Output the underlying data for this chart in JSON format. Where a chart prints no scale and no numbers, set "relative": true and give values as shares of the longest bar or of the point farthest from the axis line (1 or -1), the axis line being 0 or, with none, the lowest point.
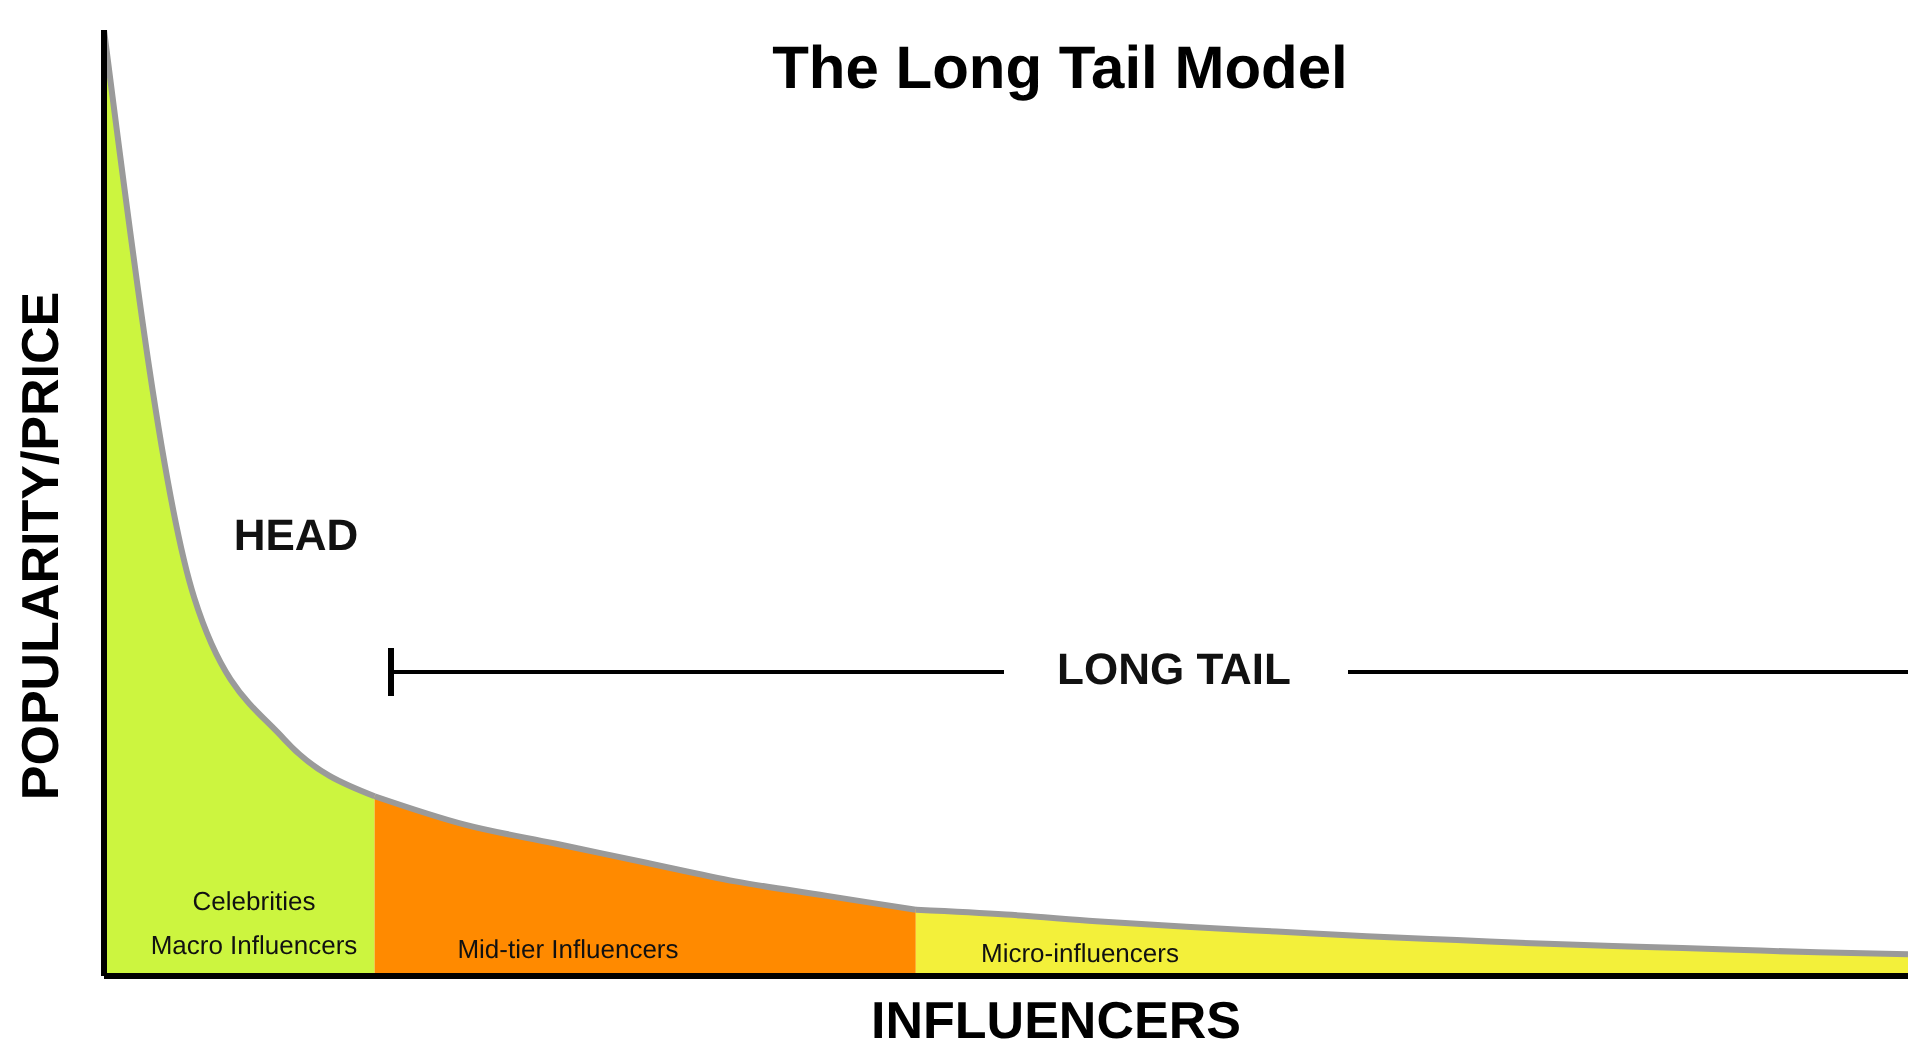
{
  "chart_data": {
    "type": "area",
    "title": "The Long Tail Model",
    "xlabel": "INFLUENCERS",
    "ylabel": "POPULARITY/PRICE",
    "relative": true,
    "categories": [
      null,
      null,
      null,
      null,
      null,
      null,
      null,
      null,
      null,
      null,
      null,
      null,
      null,
      null,
      null,
      null,
      null,
      null,
      null,
      null,
      null
    ],
    "series": [
      {
        "color": "#ccf53f",
        "values": [
          1,
          0.4,
          0.25,
          0.19,
          null,
          null,
          null,
          null,
          null,
          null,
          null,
          null,
          null,
          null,
          null,
          null,
          null,
          null,
          null,
          null,
          null
        ]
      },
      {
        "color": "#ff8a00",
        "values": [
          null,
          null,
          null,
          0.19,
          0.16,
          0.14,
          0.12,
          0.1,
          0.085,
          0.07,
          null,
          null,
          null,
          null,
          null,
          null,
          null,
          null,
          null,
          null,
          null
        ]
      },
      {
        "color": "#f3f03a",
        "values": [
          null,
          null,
          null,
          null,
          null,
          null,
          null,
          null,
          null,
          0.07,
          0.065,
          0.058,
          0.052,
          0.047,
          0.042,
          0.038,
          0.034,
          0.031,
          0.028,
          0.025,
          0.023
        ]
      }
    ],
    "annotations": [
      "HEAD",
      "LONG TAIL",
      "Celebrities",
      "Macro Influencers",
      "Mid-tier Influencers",
      "Micro-influencers"
    ]
  }
}
